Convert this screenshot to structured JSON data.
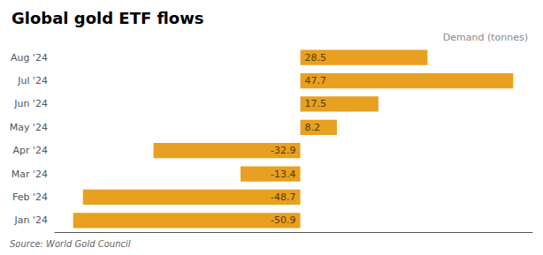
{
  "chart_data": {
    "type": "bar",
    "orientation": "horizontal",
    "title": "Global gold ETF flows",
    "subtitle": "Demand (tonnes)",
    "source": "Source: World Gold Council",
    "categories": [
      "Jan '24",
      "Feb '24",
      "Mar '24",
      "Apr '24",
      "May '24",
      "Jun '24",
      "Jul '24",
      "Aug '24"
    ],
    "values": [
      -50.9,
      -48.7,
      -13.4,
      -32.9,
      8.2,
      17.5,
      47.7,
      28.5
    ],
    "color": "#E8A020",
    "xlim": [
      -55,
      52
    ],
    "grid": false,
    "tick_labels": "y",
    "data_labels": true
  }
}
